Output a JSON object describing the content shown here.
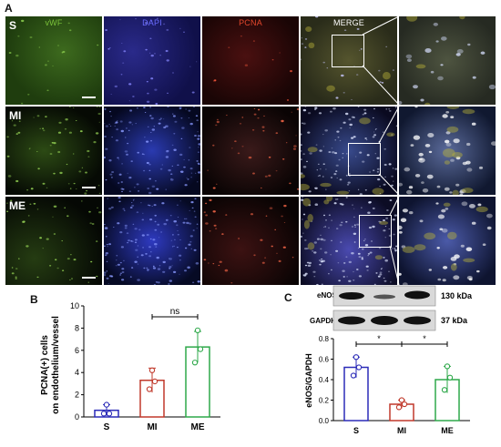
{
  "panel_a": {
    "letter": "A",
    "channels": [
      {
        "label": "vWF",
        "color": "#7cc43a"
      },
      {
        "label": "DAPI",
        "color": "#6a6cff"
      },
      {
        "label": "PCNA",
        "color": "#e4472c"
      },
      {
        "label": "MERGE",
        "color": "#ffffff"
      }
    ],
    "rows": [
      {
        "label": "S"
      },
      {
        "label": "MI"
      },
      {
        "label": "ME"
      }
    ]
  },
  "panel_b": {
    "letter": "B",
    "ylabel_line1": "PCNA(+) cells",
    "ylabel_line2": "on endothelium/vessel",
    "significance": "ns"
  },
  "panel_c": {
    "letter": "C",
    "blot_labels": [
      "eNOS",
      "GAPDH"
    ],
    "kda_labels": [
      "130 kDa",
      "37  kDa"
    ],
    "ylabel": "eNOS/GAPDH",
    "significance": [
      "*",
      "*"
    ]
  },
  "chart_data": [
    {
      "type": "bar",
      "panel": "B",
      "categories": [
        "S",
        "MI",
        "ME"
      ],
      "values": [
        0.6,
        3.3,
        6.3
      ],
      "errors": [
        0.5,
        1.1,
        1.4
      ],
      "points": [
        [
          0.3,
          0.3,
          1.1
        ],
        [
          2.5,
          3.2,
          4.2
        ],
        [
          4.9,
          6.1,
          7.8
        ]
      ],
      "colors": [
        "#2b2bb8",
        "#c0392b",
        "#2ea84a"
      ],
      "ylim": [
        0,
        10
      ],
      "yticks": [
        0,
        2,
        4,
        6,
        8,
        10
      ],
      "tick_labels": [
        "0",
        "2",
        "4",
        "6",
        "8",
        "10"
      ],
      "ylabel": "PCNA(+) cells on endothelium/vessel",
      "comparisons": [
        {
          "from": "MI",
          "to": "ME",
          "label": "ns"
        }
      ]
    },
    {
      "type": "bar",
      "panel": "C",
      "categories": [
        "S",
        "MI",
        "ME"
      ],
      "values": [
        0.52,
        0.16,
        0.4
      ],
      "errors": [
        0.1,
        0.04,
        0.13
      ],
      "points": [
        [
          0.44,
          0.52,
          0.62
        ],
        [
          0.13,
          0.16,
          0.2
        ],
        [
          0.3,
          0.42,
          0.53
        ]
      ],
      "colors": [
        "#2b2bb8",
        "#c0392b",
        "#2ea84a"
      ],
      "ylim": [
        0,
        0.8
      ],
      "yticks": [
        0.0,
        0.2,
        0.4,
        0.6,
        0.8
      ],
      "tick_labels": [
        "0.0",
        "0.2",
        "0.4",
        "0.6",
        "0.8"
      ],
      "ylabel": "eNOS/GAPDH",
      "comparisons": [
        {
          "from": "S",
          "to": "MI",
          "label": "*"
        },
        {
          "from": "MI",
          "to": "ME",
          "label": "*"
        }
      ]
    }
  ]
}
